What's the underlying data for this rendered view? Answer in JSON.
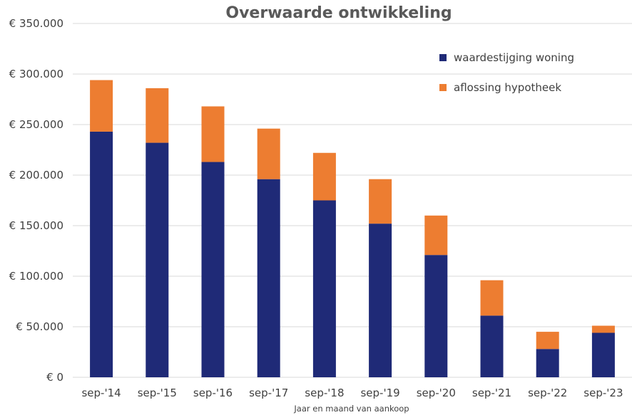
{
  "chart_data": {
    "type": "bar",
    "stacked": true,
    "title": "Overwaarde ontwikkeling",
    "xlabel": "Jaar en maand van aankoop",
    "ylabel": "",
    "ylim": [
      0,
      350000
    ],
    "yticks": [
      0,
      50000,
      100000,
      150000,
      200000,
      250000,
      300000,
      350000
    ],
    "ytick_labels": [
      "€ 0",
      "€ 50.000",
      "€ 100.000",
      "€ 150.000",
      "€ 200.000",
      "€ 250.000",
      "€ 300.000",
      "€ 350.000"
    ],
    "categories": [
      "sep-'14",
      "sep-'15",
      "sep-'16",
      "sep-'17",
      "sep-'18",
      "sep-'19",
      "sep-'20",
      "sep-'21",
      "sep-'22",
      "sep-'23"
    ],
    "series": [
      {
        "name": "waardestijging woning",
        "color": "#1f2a77",
        "values": [
          243000,
          232000,
          213000,
          196000,
          175000,
          152000,
          121000,
          61000,
          28000,
          44000
        ]
      },
      {
        "name": "aflossing hypotheek",
        "color": "#ed7d31",
        "values": [
          51000,
          54000,
          55000,
          50000,
          47000,
          44000,
          39000,
          35000,
          17000,
          7000
        ]
      }
    ],
    "grid": true,
    "legend_position": "top-right"
  }
}
